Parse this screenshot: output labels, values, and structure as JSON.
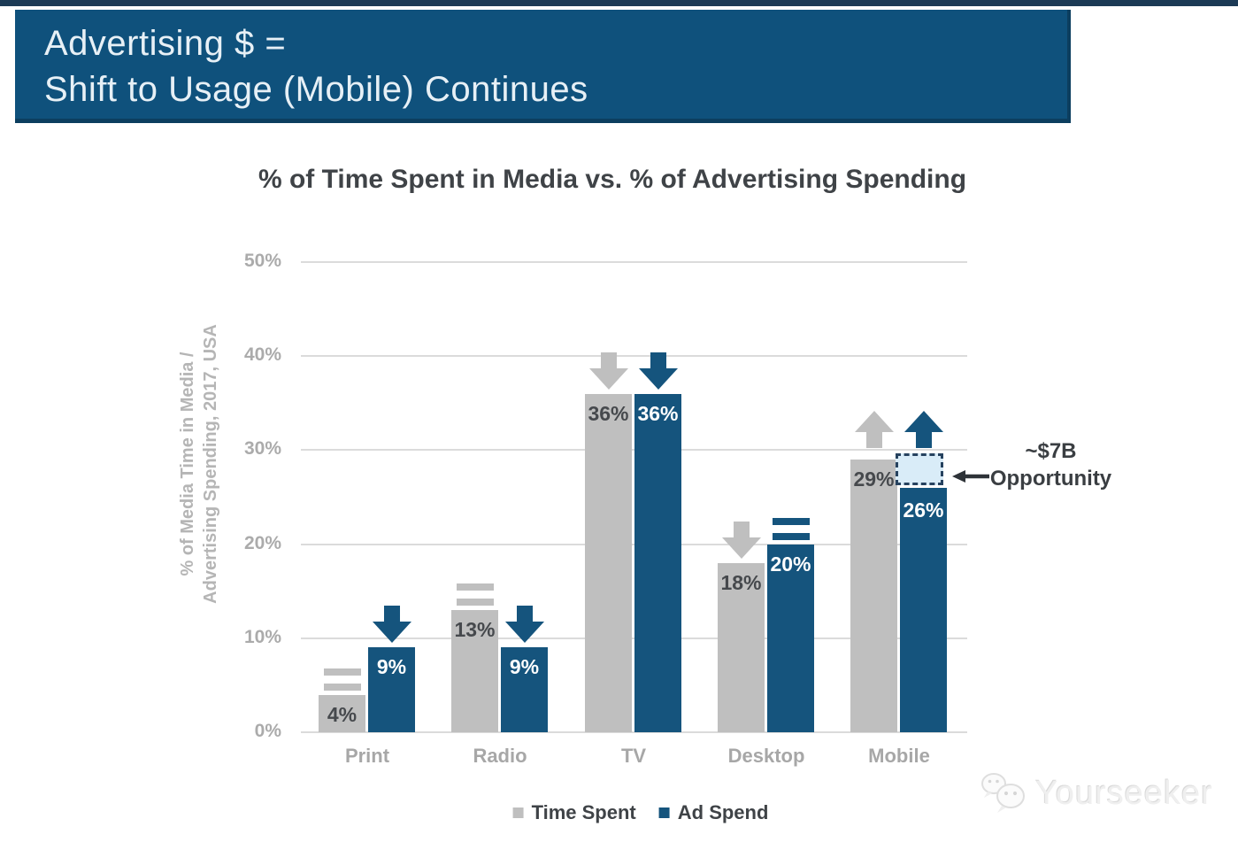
{
  "header": {
    "line1": "Advertising $ =",
    "line2": "Shift to Usage (Mobile) Continues"
  },
  "chart_data": {
    "type": "bar",
    "title": "% of Time Spent in Media vs. % of Advertising Spending",
    "ylabel_line1": "% of Media Time in Media /",
    "ylabel_line2": "Advertising Spending, 2017, USA",
    "categories": [
      "Print",
      "Radio",
      "TV",
      "Desktop",
      "Mobile"
    ],
    "series": [
      {
        "name": "Time Spent",
        "color": "#BFBFBF",
        "values": [
          4,
          13,
          36,
          18,
          29
        ],
        "value_labels": [
          "4%",
          "13%",
          "36%",
          "18%",
          "29%"
        ],
        "trend": [
          "equal",
          "equal",
          "down",
          "down",
          "up"
        ]
      },
      {
        "name": "Ad Spend",
        "color": "#15547D",
        "values": [
          9,
          9,
          36,
          20,
          26
        ],
        "value_labels": [
          "9%",
          "9%",
          "36%",
          "20%",
          "26%"
        ],
        "trend": [
          "down",
          "down",
          "down",
          "equal",
          "up"
        ]
      }
    ],
    "yticks": [
      0,
      10,
      20,
      30,
      40,
      50
    ],
    "ytick_labels": [
      "0%",
      "10%",
      "20%",
      "30%",
      "40%",
      "50%"
    ],
    "ylim": [
      0,
      50
    ],
    "grid": "horizontal",
    "legend_position": "bottom",
    "annotation": {
      "line1": "~$7B",
      "line2": "Opportunity",
      "target": "gap between Mobile time spent (29%) and Mobile ad spend (26%)"
    }
  },
  "colors": {
    "header_bg": "#0F517C",
    "top_strip": "#1C3A55",
    "time_spent": "#BFBFBF",
    "ad_spend": "#15547D",
    "gridline": "#DBDBDB",
    "axis_text": "#ABABAB",
    "title_text": "#3F4347",
    "opportunity_fill": "#D9ECF8",
    "opportunity_border": "#26425F"
  },
  "watermark": {
    "label": "Yourseeker"
  }
}
